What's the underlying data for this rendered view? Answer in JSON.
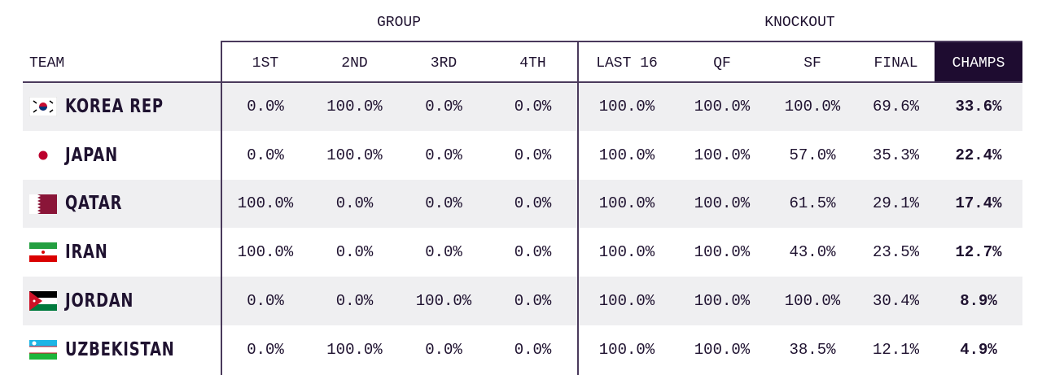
{
  "header": {
    "groups": [
      "GROUP",
      "KNOCKOUT"
    ],
    "columns": [
      "TEAM",
      "1ST",
      "2ND",
      "3RD",
      "4TH",
      "LAST 16",
      "QF",
      "SF",
      "FINAL",
      "CHAMPS"
    ]
  },
  "table": {
    "rows": [
      [
        "KOREA REP",
        "0.0%",
        "100.0%",
        "0.0%",
        "0.0%",
        "100.0%",
        "100.0%",
        "100.0%",
        "69.6%",
        "33.6%"
      ],
      [
        "JAPAN",
        "0.0%",
        "100.0%",
        "0.0%",
        "0.0%",
        "100.0%",
        "100.0%",
        "57.0%",
        "35.3%",
        "22.4%"
      ],
      [
        "QATAR",
        "100.0%",
        "0.0%",
        "0.0%",
        "0.0%",
        "100.0%",
        "100.0%",
        "61.5%",
        "29.1%",
        "17.4%"
      ],
      [
        "IRAN",
        "100.0%",
        "0.0%",
        "0.0%",
        "0.0%",
        "100.0%",
        "100.0%",
        "43.0%",
        "23.5%",
        "12.7%"
      ],
      [
        "JORDAN",
        "0.0%",
        "0.0%",
        "100.0%",
        "0.0%",
        "100.0%",
        "100.0%",
        "100.0%",
        "30.4%",
        "8.9%"
      ],
      [
        "UZBEKISTAN",
        "0.0%",
        "100.0%",
        "0.0%",
        "0.0%",
        "100.0%",
        "100.0%",
        "38.5%",
        "12.1%",
        "4.9%"
      ]
    ]
  }
}
